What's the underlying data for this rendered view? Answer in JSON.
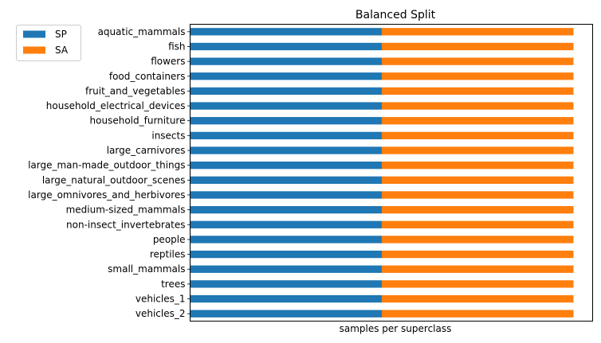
{
  "chart_data": {
    "type": "bar",
    "orientation": "horizontal",
    "stacked": true,
    "title": "Balanced Split",
    "xlabel": "samples per superclass",
    "ylabel": "",
    "x_ticks_shown": false,
    "grid": false,
    "legend_position": "top-left",
    "categories": [
      "aquatic_mammals",
      "fish",
      "flowers",
      "food_containers",
      "fruit_and_vegetables",
      "household_electrical_devices",
      "household_furniture",
      "insects",
      "large_carnivores",
      "large_man-made_outdoor_things",
      "large_natural_outdoor_scenes",
      "large_omnivores_and_herbivores",
      "medium-sized_mammals",
      "non-insect_invertebrates",
      "people",
      "reptiles",
      "small_mammals",
      "trees",
      "vehicles_1",
      "vehicles_2"
    ],
    "xlim": [
      0,
      1.05
    ],
    "series": [
      {
        "name": "SP",
        "color": "#1f77b4",
        "values": [
          0.5,
          0.5,
          0.5,
          0.5,
          0.5,
          0.5,
          0.5,
          0.5,
          0.5,
          0.5,
          0.5,
          0.5,
          0.5,
          0.5,
          0.5,
          0.5,
          0.5,
          0.5,
          0.5,
          0.5
        ]
      },
      {
        "name": "SA",
        "color": "#ff7f0e",
        "values": [
          0.5,
          0.5,
          0.5,
          0.5,
          0.5,
          0.5,
          0.5,
          0.5,
          0.5,
          0.5,
          0.5,
          0.5,
          0.5,
          0.5,
          0.5,
          0.5,
          0.5,
          0.5,
          0.5,
          0.5
        ]
      }
    ]
  }
}
